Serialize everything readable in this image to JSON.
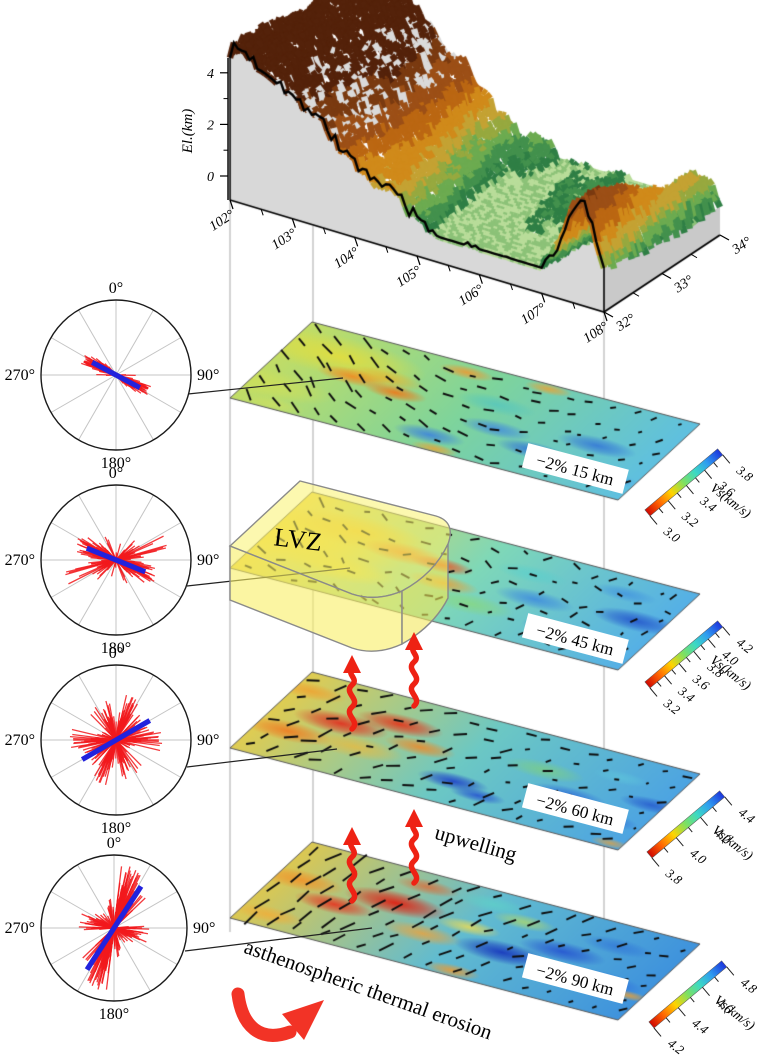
{
  "chart_data": {
    "type": "composite",
    "terrain": {
      "ylabel": "El.(km)",
      "el_ticks": [
        {
          "label": "4",
          "km": 4
        },
        {
          "label": "2",
          "km": 2
        },
        {
          "label": "0",
          "km": 0
        }
      ],
      "el_minor_km": [
        3,
        1
      ],
      "lon_ticks": [
        "102°",
        "103°",
        "104°",
        "105°",
        "106°",
        "107°",
        "108°"
      ],
      "lat_ticks": [
        "32°",
        "33°",
        "34°"
      ]
    },
    "roses": [
      {
        "depth_km": 15,
        "axis_labels": {
          "top": "0°",
          "right": "90°",
          "bottom": "180°",
          "left": "270°"
        },
        "mean_azimuth_deg": 118,
        "mean_length_frac": 0.36,
        "clusters": [
          {
            "center_deg": 117,
            "spread_deg": 7,
            "count": 55,
            "len_min": 0.18,
            "len_max": 0.5
          },
          {
            "center_deg": 120,
            "spread_deg": 16,
            "count": 25,
            "len_min": 0.1,
            "len_max": 0.32
          }
        ]
      },
      {
        "depth_km": 45,
        "axis_labels": {
          "top": "0°",
          "right": "90°",
          "bottom": "180°",
          "left": "270°"
        },
        "mean_azimuth_deg": 112,
        "mean_length_frac": 0.42,
        "clusters": [
          {
            "center_deg": 112,
            "spread_deg": 10,
            "count": 45,
            "len_min": 0.2,
            "len_max": 0.55
          },
          {
            "center_deg": 95,
            "spread_deg": 45,
            "count": 60,
            "len_min": 0.08,
            "len_max": 0.4
          },
          {
            "center_deg": 70,
            "spread_deg": 8,
            "count": 6,
            "len_min": 0.5,
            "len_max": 0.72
          },
          {
            "center_deg": 118,
            "spread_deg": 5,
            "count": 5,
            "len_min": 0.5,
            "len_max": 0.6
          }
        ]
      },
      {
        "depth_km": 60,
        "axis_labels": {
          "top": "0°",
          "right": "90°",
          "bottom": "180°",
          "left": "270°"
        },
        "mean_azimuth_deg": 60,
        "mean_length_frac": 0.52,
        "clusters": [
          {
            "center_deg": 22,
            "spread_deg": 10,
            "count": 35,
            "len_min": 0.2,
            "len_max": 0.62
          },
          {
            "center_deg": 58,
            "spread_deg": 14,
            "count": 25,
            "len_min": 0.15,
            "len_max": 0.5
          },
          {
            "center_deg": 88,
            "spread_deg": 9,
            "count": 18,
            "len_min": 0.25,
            "len_max": 0.62
          },
          {
            "center_deg": 160,
            "spread_deg": 14,
            "count": 22,
            "len_min": 0.2,
            "len_max": 0.55
          },
          {
            "center_deg": 120,
            "spread_deg": 35,
            "count": 15,
            "len_min": 0.08,
            "len_max": 0.3
          }
        ]
      },
      {
        "depth_km": 90,
        "axis_labels": {
          "top": "0°",
          "right": "90°",
          "bottom": "180°",
          "left": "270°"
        },
        "mean_azimuth_deg": 33,
        "mean_length_frac": 0.68,
        "clusters": [
          {
            "center_deg": 18,
            "spread_deg": 8,
            "count": 55,
            "len_min": 0.3,
            "len_max": 0.88
          },
          {
            "center_deg": 33,
            "spread_deg": 13,
            "count": 25,
            "len_min": 0.2,
            "len_max": 0.6
          },
          {
            "center_deg": 95,
            "spread_deg": 10,
            "count": 16,
            "len_min": 0.2,
            "len_max": 0.5
          },
          {
            "center_deg": 115,
            "spread_deg": 8,
            "count": 8,
            "len_min": 0.15,
            "len_max": 0.4
          },
          {
            "center_deg": 155,
            "spread_deg": 25,
            "count": 12,
            "len_min": 0.1,
            "len_max": 0.3
          },
          {
            "center_deg": 350,
            "spread_deg": 8,
            "count": 10,
            "len_min": 0.15,
            "len_max": 0.45
          }
        ]
      }
    ],
    "colorbar_unit": "Vs(km/s)",
    "slices": [
      {
        "depth_km": 15,
        "label": "−2% 15 km",
        "colorbar": {
          "min": 3.0,
          "max": 3.8,
          "ticks": [
            "3.0",
            "3.2",
            "3.4",
            "3.6",
            "3.8"
          ]
        },
        "base": [
          "#c2dd66",
          "#7ed49c",
          "#5fc0e0"
        ],
        "bars": {
          "a0": 70,
          "au": -85,
          "av": -8,
          "jit": 14,
          "len0": 12,
          "lenu": -7,
          "lenJit": 3,
          "seed": 11
        },
        "blobs": [
          {
            "x": 0.13,
            "y": 0.72,
            "r": 0.22,
            "c": "#e3de3e",
            "a": 0.9
          },
          {
            "x": 0.05,
            "y": 0.25,
            "r": 0.16,
            "c": "#cfe05a",
            "a": 0.8
          },
          {
            "x": 0.2,
            "y": 0.55,
            "r": 0.09,
            "c": "#f28a20",
            "a": 0.9
          },
          {
            "x": 0.32,
            "y": 0.5,
            "r": 0.08,
            "c": "#f07818",
            "a": 0.9
          },
          {
            "x": 0.27,
            "y": 0.62,
            "r": 0.1,
            "c": "#f0b028",
            "a": 0.7
          },
          {
            "x": 0.42,
            "y": 0.9,
            "r": 0.07,
            "c": "#f09830",
            "a": 0.85
          },
          {
            "x": 0.62,
            "y": 0.95,
            "r": 0.06,
            "c": "#f0a030",
            "a": 0.8
          },
          {
            "x": 0.48,
            "y": 0.16,
            "r": 0.09,
            "c": "#3a7fe0",
            "a": 0.85
          },
          {
            "x": 0.6,
            "y": 0.4,
            "r": 0.09,
            "c": "#3f86e0",
            "a": 0.8
          },
          {
            "x": 0.72,
            "y": 0.28,
            "r": 0.09,
            "c": "#2f6fd8",
            "a": 0.85
          },
          {
            "x": 0.84,
            "y": 0.5,
            "r": 0.1,
            "c": "#2f6fd8",
            "a": 0.8
          },
          {
            "x": 0.93,
            "y": 0.2,
            "r": 0.08,
            "c": "#4a9ae8",
            "a": 0.8
          },
          {
            "x": 0.55,
            "y": 0.65,
            "r": 0.1,
            "c": "#49c2c8",
            "a": 0.6
          },
          {
            "x": 0.1,
            "y": 0.05,
            "r": 0.08,
            "c": "#cfe060",
            "a": 0.7
          },
          {
            "x": 0.52,
            "y": 0.03,
            "r": 0.06,
            "c": "#f0a030",
            "a": 0.8
          }
        ]
      },
      {
        "depth_km": 45,
        "label": "−2% 45 km",
        "colorbar": {
          "min": 3.2,
          "max": 4.2,
          "ticks": [
            "3.2",
            "3.4",
            "3.6",
            "3.8",
            "4.0",
            "4.2"
          ]
        },
        "base": [
          "#edd44e",
          "#7fd8b8",
          "#55b0e6"
        ],
        "bars": {
          "a0": 45,
          "au": -60,
          "av": 5,
          "jit": 40,
          "len0": 9,
          "lenu": -3,
          "lenJit": 3,
          "seed": 22
        },
        "blobs": [
          {
            "x": 0.06,
            "y": 0.5,
            "r": 0.28,
            "c": "#f0d43a",
            "a": 0.95
          },
          {
            "x": 0.18,
            "y": 0.72,
            "r": 0.18,
            "c": "#eec42e",
            "a": 0.9
          },
          {
            "x": 0.22,
            "y": 0.3,
            "r": 0.14,
            "c": "#ecd83e",
            "a": 0.8
          },
          {
            "x": 0.32,
            "y": 0.62,
            "r": 0.11,
            "c": "#f08828",
            "a": 0.9
          },
          {
            "x": 0.42,
            "y": 0.6,
            "r": 0.08,
            "c": "#e85426",
            "a": 0.9
          },
          {
            "x": 0.46,
            "y": 0.42,
            "r": 0.09,
            "c": "#f09a30",
            "a": 0.8
          },
          {
            "x": 0.56,
            "y": 0.28,
            "r": 0.11,
            "c": "#8ad878",
            "a": 0.7
          },
          {
            "x": 0.68,
            "y": 0.5,
            "r": 0.1,
            "c": "#3a86e0",
            "a": 0.8
          },
          {
            "x": 0.8,
            "y": 0.25,
            "r": 0.1,
            "c": "#2f72d8",
            "a": 0.8
          },
          {
            "x": 0.93,
            "y": 0.55,
            "r": 0.11,
            "c": "#2456cc",
            "a": 0.9
          },
          {
            "x": 0.62,
            "y": 0.75,
            "r": 0.09,
            "c": "#54cfd0",
            "a": 0.6
          },
          {
            "x": 0.85,
            "y": 0.8,
            "r": 0.08,
            "c": "#3f8fe0",
            "a": 0.7
          }
        ]
      },
      {
        "depth_km": 60,
        "label": "−2% 60 km",
        "colorbar": {
          "min": 3.8,
          "max": 4.4,
          "ticks": [
            "3.8",
            "4.0",
            "4.2",
            "4.4"
          ]
        },
        "base": [
          "#e0cc52",
          "#6cc8c4",
          "#4da4e2"
        ],
        "bars": {
          "a0": -14,
          "au": 2,
          "av": 8,
          "jit": 20,
          "len0": 13,
          "lenu": -7,
          "lenJit": 4,
          "seed": 33
        },
        "blobs": [
          {
            "x": 0.17,
            "y": 0.55,
            "r": 0.12,
            "c": "#e03422",
            "a": 0.95
          },
          {
            "x": 0.29,
            "y": 0.7,
            "r": 0.11,
            "c": "#e23a1f",
            "a": 0.95
          },
          {
            "x": 0.08,
            "y": 0.33,
            "r": 0.11,
            "c": "#f07c22",
            "a": 0.9
          },
          {
            "x": 0.38,
            "y": 0.52,
            "r": 0.09,
            "c": "#f08826",
            "a": 0.85
          },
          {
            "x": 0.04,
            "y": 0.8,
            "r": 0.09,
            "c": "#f0a030",
            "a": 0.8
          },
          {
            "x": 0.25,
            "y": 0.35,
            "r": 0.12,
            "c": "#f0b838",
            "a": 0.7
          },
          {
            "x": 0.52,
            "y": 0.26,
            "r": 0.09,
            "c": "#1f41c8",
            "a": 0.9
          },
          {
            "x": 0.6,
            "y": 0.18,
            "r": 0.07,
            "c": "#2450d0",
            "a": 0.85
          },
          {
            "x": 0.78,
            "y": 0.42,
            "r": 0.1,
            "c": "#2d66d8",
            "a": 0.8
          },
          {
            "x": 0.9,
            "y": 0.28,
            "r": 0.09,
            "c": "#2a5fd4",
            "a": 0.8
          },
          {
            "x": 0.97,
            "y": 0.55,
            "r": 0.08,
            "c": "#2456cc",
            "a": 0.8
          },
          {
            "x": 0.68,
            "y": 0.62,
            "r": 0.1,
            "c": "#84d46c",
            "a": 0.6
          },
          {
            "x": 0.85,
            "y": 0.75,
            "r": 0.07,
            "c": "#5fc8dc",
            "a": 0.6
          },
          {
            "x": 0.97,
            "y": 0.05,
            "r": 0.05,
            "c": "#f0a030",
            "a": 0.7
          }
        ]
      },
      {
        "depth_km": 90,
        "label": "−2% 90 km",
        "colorbar": {
          "min": 4.2,
          "max": 4.8,
          "ticks": [
            "4.2",
            "4.4",
            "4.6",
            "4.8"
          ]
        },
        "base": [
          "#dcc852",
          "#62bcd0",
          "#3f93dd"
        ],
        "bars": {
          "a0": -36,
          "au": 30,
          "av": 2,
          "jit": 12,
          "len0": 16,
          "lenu": -10,
          "lenJit": 4,
          "seed": 44
        },
        "blobs": [
          {
            "x": 0.3,
            "y": 0.6,
            "r": 0.13,
            "c": "#df2012",
            "a": 0.95
          },
          {
            "x": 0.18,
            "y": 0.42,
            "r": 0.1,
            "c": "#e63420",
            "a": 0.9
          },
          {
            "x": 0.06,
            "y": 0.58,
            "r": 0.11,
            "c": "#f0942c",
            "a": 0.9
          },
          {
            "x": 0.07,
            "y": 0.14,
            "r": 0.09,
            "c": "#f0ae3a",
            "a": 0.85
          },
          {
            "x": 0.42,
            "y": 0.36,
            "r": 0.1,
            "c": "#f0a238",
            "a": 0.8
          },
          {
            "x": 0.5,
            "y": 0.55,
            "r": 0.08,
            "c": "#f2dc4e",
            "a": 0.8
          },
          {
            "x": 0.5,
            "y": 0.85,
            "r": 0.09,
            "c": "#5ed2c8",
            "a": 0.7
          },
          {
            "x": 0.6,
            "y": 0.75,
            "r": 0.08,
            "c": "#b8dc60",
            "a": 0.7
          },
          {
            "x": 0.62,
            "y": 0.38,
            "r": 0.12,
            "c": "#1634bc",
            "a": 0.9
          },
          {
            "x": 0.74,
            "y": 0.55,
            "r": 0.11,
            "c": "#2350d0",
            "a": 0.85
          },
          {
            "x": 0.88,
            "y": 0.35,
            "r": 0.11,
            "c": "#2a62dc",
            "a": 0.85
          },
          {
            "x": 0.84,
            "y": 0.75,
            "r": 0.09,
            "c": "#2f72d8",
            "a": 0.7
          },
          {
            "x": 0.56,
            "y": 0.06,
            "r": 0.07,
            "c": "#f09a2e",
            "a": 0.85
          },
          {
            "x": 0.97,
            "y": 0.28,
            "r": 0.05,
            "c": "#f0a030",
            "a": 0.8
          },
          {
            "x": 0.33,
            "y": 0.85,
            "r": 0.08,
            "c": "#e86028",
            "a": 0.7
          }
        ]
      }
    ],
    "annotations": {
      "lvz": "LVZ",
      "upwelling": "upwelling",
      "erosion": "asthenospheric thermal erosion"
    },
    "colors": {
      "rose_petal": "#f2191d",
      "rose_mean": "#2222dd",
      "arrow_red": "#ee2214",
      "jet": [
        "#cf0802",
        "#ff6302",
        "#ffd400",
        "#7ee061",
        "#3cd9c4",
        "#2f9df0",
        "#1c35dd"
      ]
    }
  }
}
